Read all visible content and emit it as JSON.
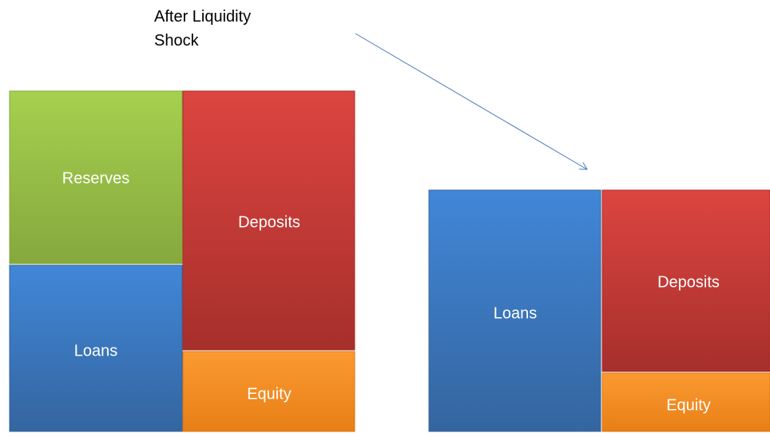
{
  "annotation": {
    "text": "After Liquidity Shock"
  },
  "before": {
    "blocks": [
      {
        "label": "Reserves"
      },
      {
        "label": "Loans"
      },
      {
        "label": "Deposits"
      },
      {
        "label": "Equity"
      }
    ]
  },
  "after": {
    "blocks": [
      {
        "label": "Loans"
      },
      {
        "label": "Deposits"
      },
      {
        "label": "Equity"
      }
    ]
  }
}
